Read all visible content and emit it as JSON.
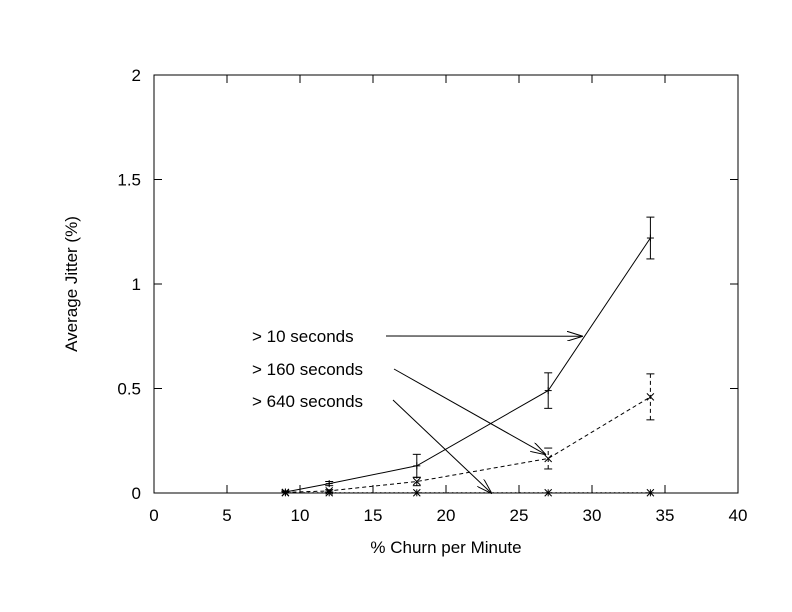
{
  "chart_data": {
    "type": "line",
    "title": "",
    "xlabel": "% Churn per Minute",
    "ylabel": "Average Jitter (%)",
    "xlim": [
      0,
      40
    ],
    "ylim": [
      0,
      2
    ],
    "x_ticks": [
      0,
      5,
      10,
      15,
      20,
      25,
      30,
      35,
      40
    ],
    "x_tick_labels": [
      "0",
      "5",
      "10",
      "15",
      "20",
      "25",
      "30",
      "35",
      "40"
    ],
    "y_ticks": [
      0,
      0.5,
      1,
      1.5,
      2
    ],
    "y_tick_labels": [
      "0",
      "0.5",
      "1",
      "1.5",
      "2"
    ],
    "grid": false,
    "legend": "none",
    "series": [
      {
        "name": "> 10 seconds",
        "style": "solid",
        "marker": "plus",
        "points": [
          {
            "x": 9,
            "y": 0.005,
            "err": 0.005
          },
          {
            "x": 12,
            "y": 0.045,
            "err": 0.01
          },
          {
            "x": 18,
            "y": 0.13,
            "err": 0.055
          },
          {
            "x": 27,
            "y": 0.49,
            "err": 0.085
          },
          {
            "x": 34,
            "y": 1.22,
            "err": 0.1
          }
        ]
      },
      {
        "name": "> 160 seconds",
        "style": "dashed",
        "marker": "cross",
        "points": [
          {
            "x": 9,
            "y": 0.003,
            "err": 0.003
          },
          {
            "x": 12,
            "y": 0.01,
            "err": 0.005
          },
          {
            "x": 18,
            "y": 0.055,
            "err": 0.02
          },
          {
            "x": 27,
            "y": 0.165,
            "err": 0.05
          },
          {
            "x": 34,
            "y": 0.46,
            "err": 0.11
          }
        ]
      },
      {
        "name": "> 640 seconds",
        "style": "dotted",
        "marker": "star",
        "points": [
          {
            "x": 9,
            "y": 0.001,
            "err": 0
          },
          {
            "x": 12,
            "y": 0.001,
            "err": 0
          },
          {
            "x": 18,
            "y": 0.001,
            "err": 0
          },
          {
            "x": 27,
            "y": 0.001,
            "err": 0
          },
          {
            "x": 34,
            "y": 0.001,
            "err": 0
          }
        ]
      }
    ],
    "annotations": [
      {
        "text": "> 10 seconds",
        "arrow_to": {
          "x": 29.3,
          "y": 0.75
        }
      },
      {
        "text": "> 160 seconds",
        "arrow_to": {
          "x": 26.8,
          "y": 0.185
        }
      },
      {
        "text": "> 640 seconds",
        "arrow_to": {
          "x": 23.1,
          "y": 0
        }
      }
    ]
  }
}
